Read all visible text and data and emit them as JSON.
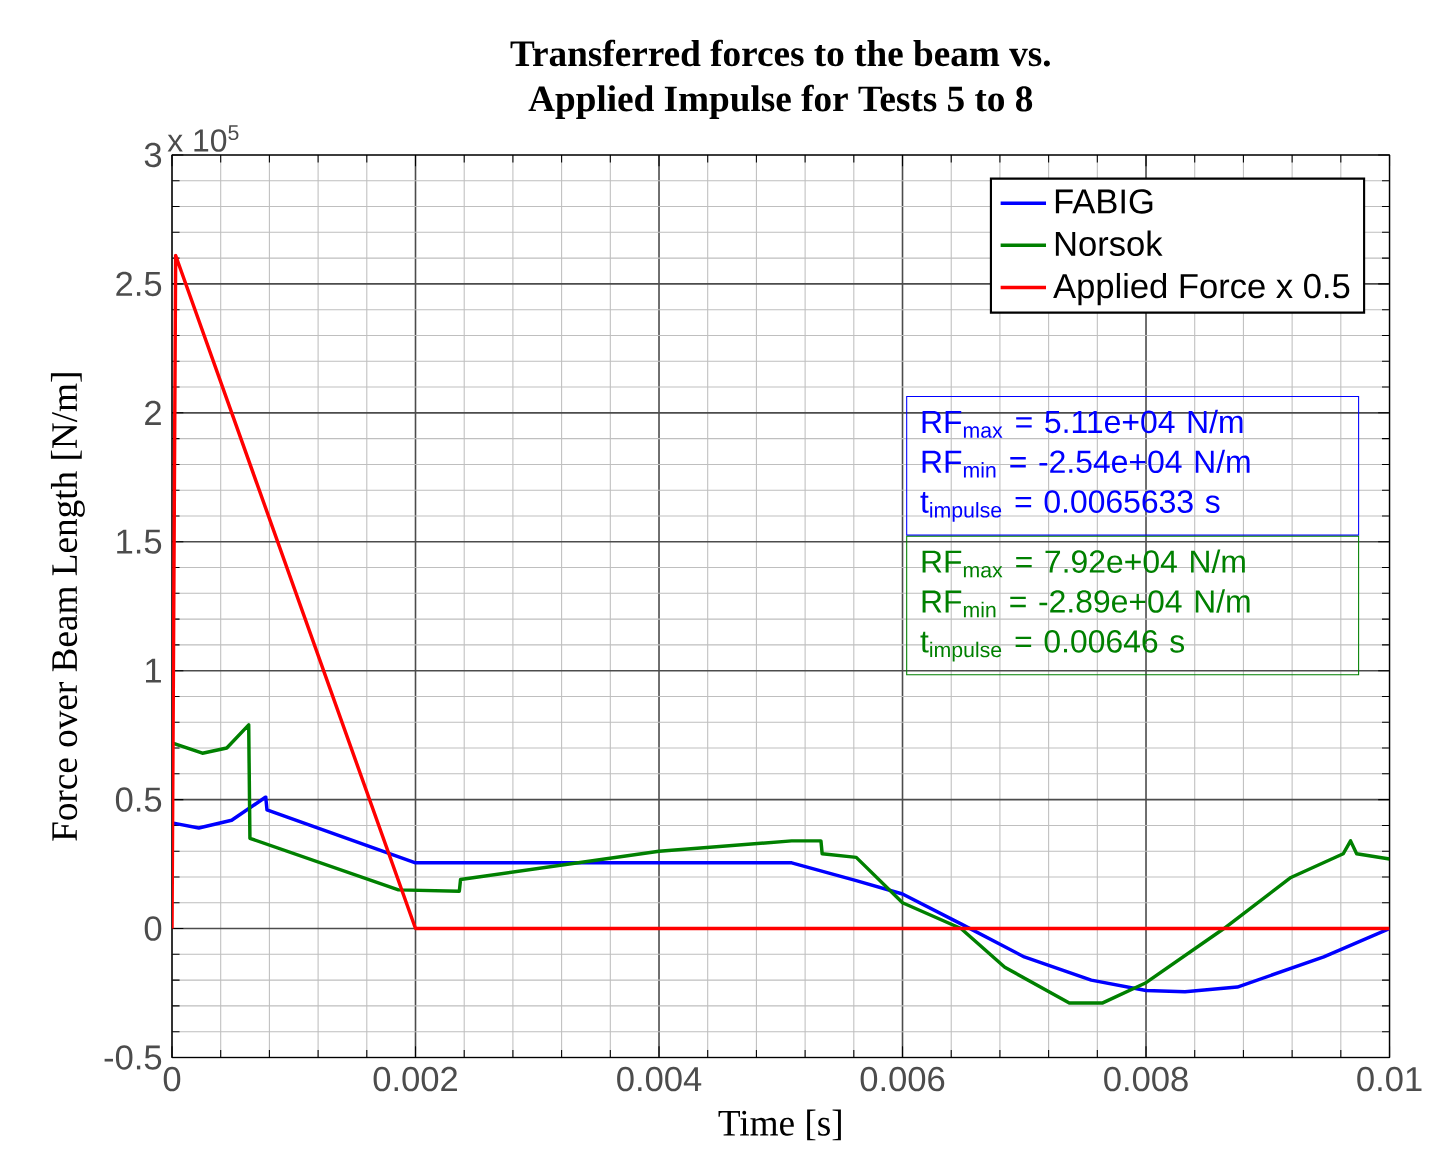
{
  "chart_data": {
    "type": "line",
    "title": "Transferred forces to the beam vs.\nApplied Impulse for Tests 5 to 8",
    "xlabel": "Time [s]",
    "ylabel": "Force over Beam Length [N/m]",
    "xlim": [
      0,
      0.01
    ],
    "xticks": [
      0,
      0.002,
      0.004,
      0.006,
      0.008,
      0.01
    ],
    "ylim": [
      -0.5,
      3
    ],
    "yticks": [
      -0.5,
      0,
      0.5,
      1,
      1.5,
      2,
      2.5,
      3
    ],
    "grid": true,
    "legend": "top right",
    "series": [
      {
        "name": "FABIG",
        "color": "#0000ff",
        "x": [
          0,
          0.00022,
          0.00049,
          0.00077,
          0.00078,
          0.002,
          0.00509,
          0.00562,
          0.006,
          0.00648,
          0.007,
          0.00755,
          0.008,
          0.00832,
          0.00875,
          0.00946,
          0.01
        ],
        "values": [
          0.41,
          0.39,
          0.42,
          0.51,
          0.46,
          0.255,
          0.255,
          0.186,
          0.134,
          0.018,
          -0.11,
          -0.2,
          -0.24,
          -0.245,
          -0.227,
          -0.11,
          0
        ]
      },
      {
        "name": "Norsok",
        "color": "#008000",
        "x": [
          0,
          0.00025,
          0.00045,
          0.00063,
          0.00064,
          0.00186,
          0.00236,
          0.00237,
          0.004,
          0.00509,
          0.00533,
          0.00534,
          0.00562,
          0.006,
          0.00648,
          0.00684,
          0.00737,
          0.00764,
          0.008,
          0.00864,
          0.00919,
          0.00962,
          0.00968,
          0.00973,
          0.01
        ],
        "values": [
          0.72,
          0.68,
          0.7,
          0.79,
          0.35,
          0.15,
          0.145,
          0.19,
          0.3,
          0.34,
          0.34,
          0.29,
          0.276,
          0.1,
          0,
          -0.15,
          -0.289,
          -0.289,
          -0.21,
          0,
          0.198,
          0.29,
          0.34,
          0.29,
          0.27
        ]
      },
      {
        "name": "Applied Force x 0.5",
        "color": "#ff0000",
        "x": [
          0,
          3e-05,
          0.002,
          0.01
        ],
        "values": [
          0,
          2.61,
          0,
          0
        ]
      }
    ],
    "annotations": [
      "x 10$^{5}$",
      "RF$_{max}$ = 5.11e+04 N/m",
      "RF$_{min}$ = -2.54e+04 N/m",
      "t$_{impulse}$ = 0.0065633 s",
      "RF$_{max}$ = 7.92e+04 N/m",
      "RF$_{min}$ = -2.89e+04 N/m",
      "t$_{impulse}$ = 0.00646 s"
    ]
  }
}
